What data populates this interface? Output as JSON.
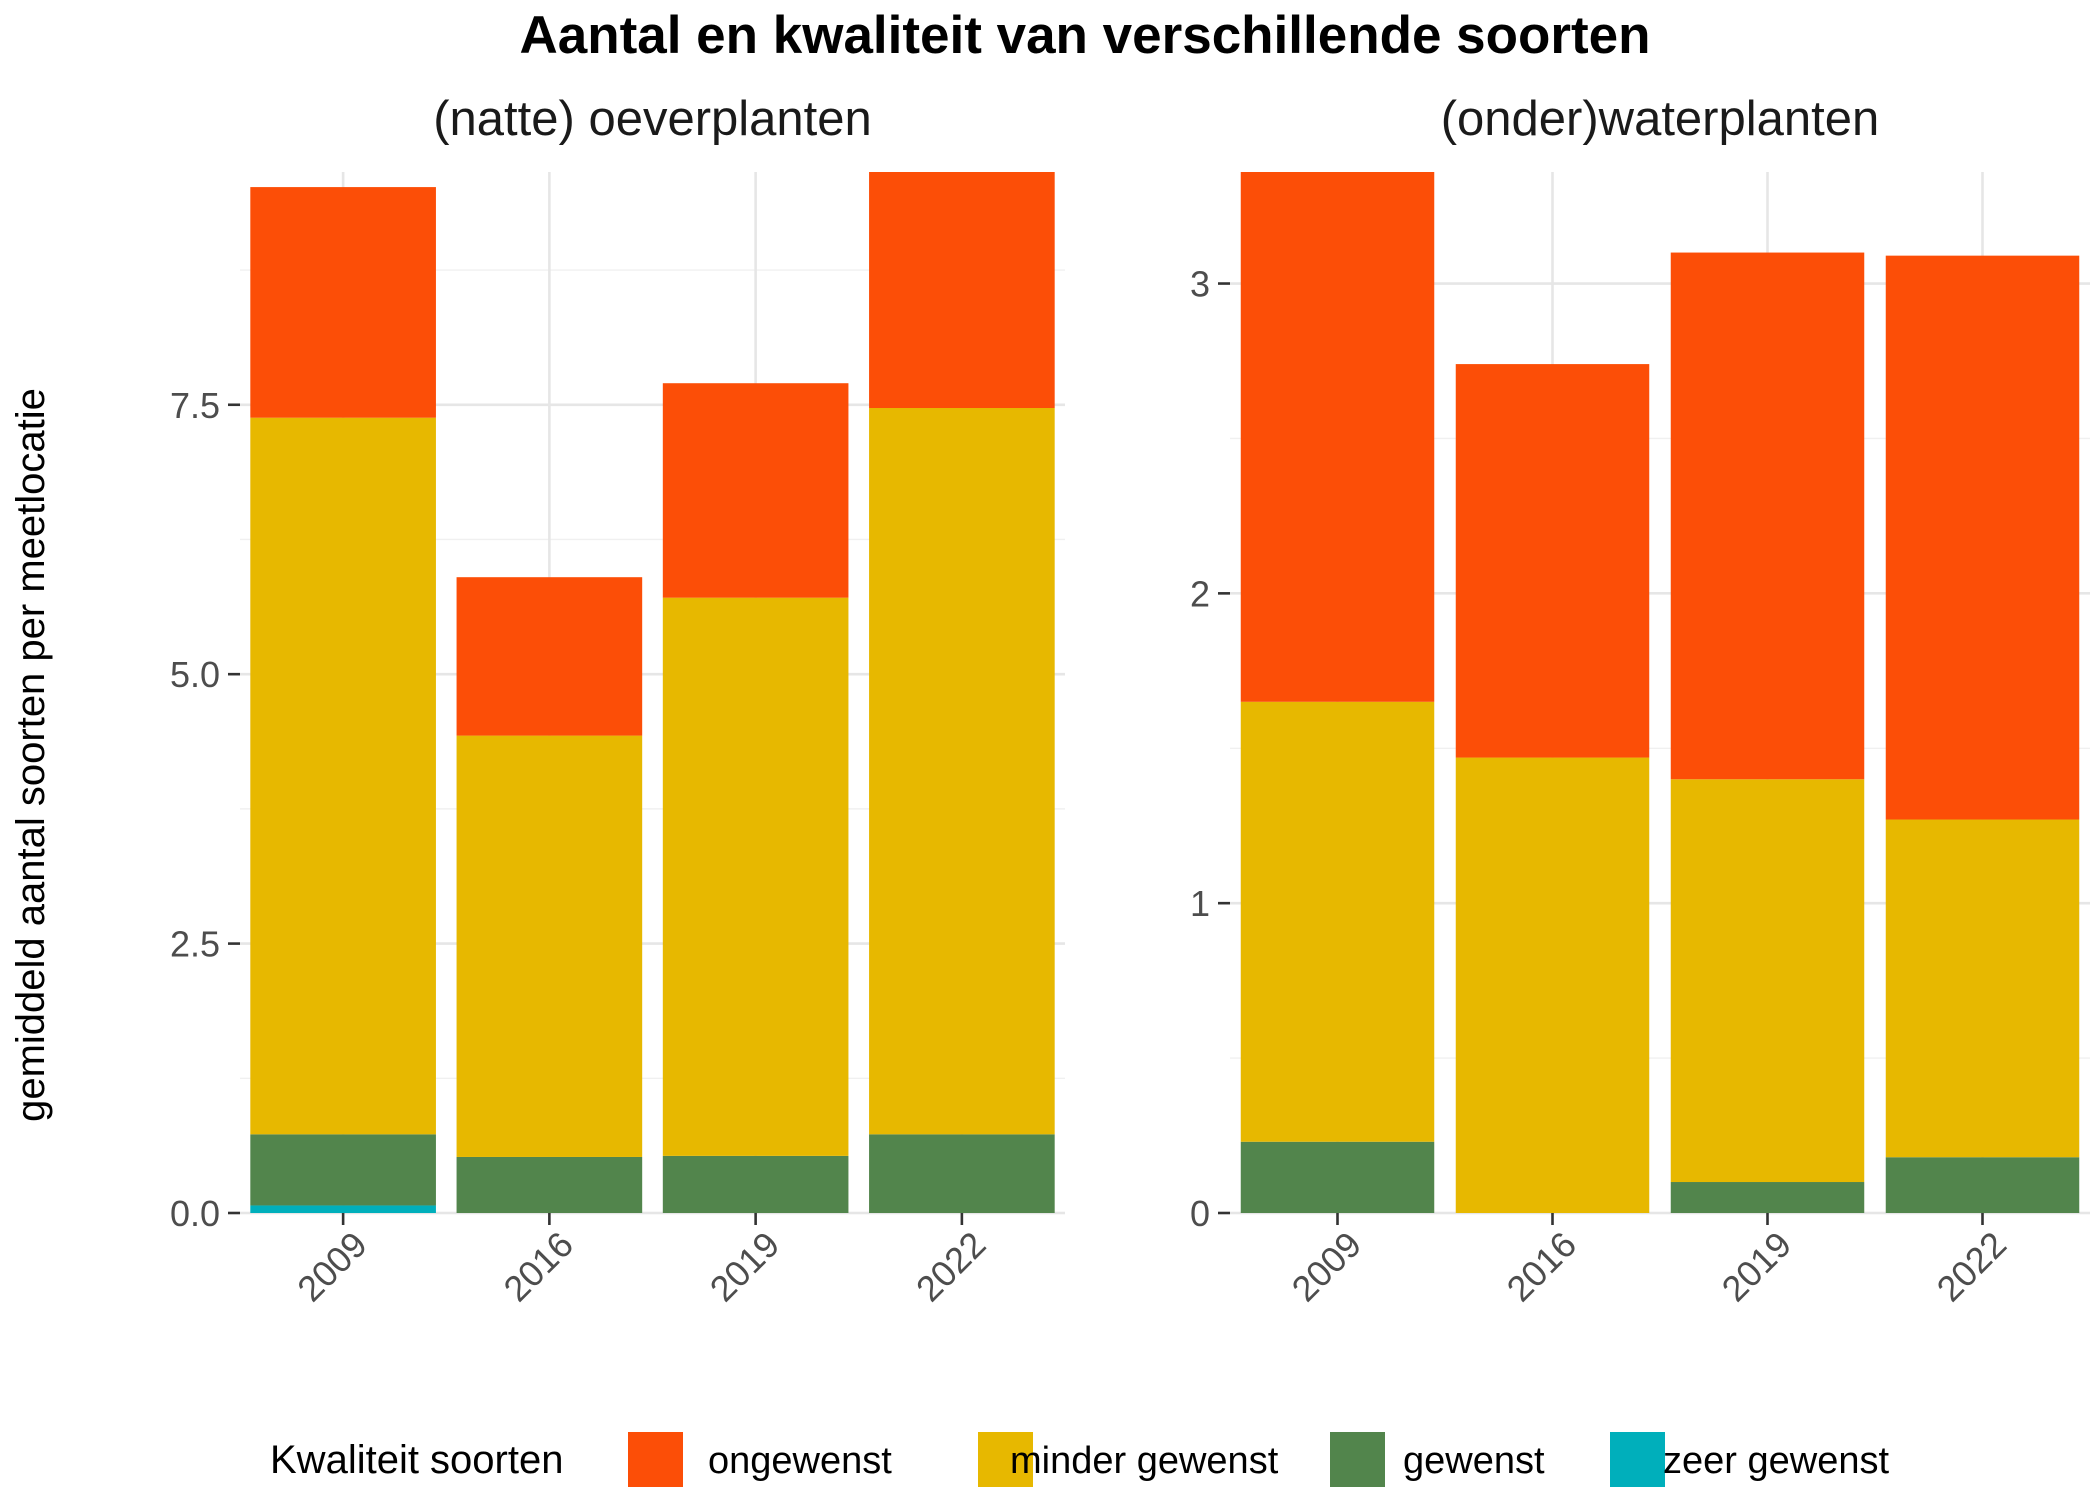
{
  "title": "Aantal en kwaliteit van verschillende soorten",
  "chart_data": {
    "type": "bar",
    "stacked": true,
    "title": "Aantal en kwaliteit van verschillende soorten",
    "ylabel": "gemiddeld aantal soorten per meetlocatie",
    "categories": [
      "2009",
      "2016",
      "2019",
      "2022"
    ],
    "grid": true,
    "legend": {
      "title": "Kwaliteit soorten",
      "position": "bottom",
      "entries": [
        {
          "name": "ongewenst",
          "color": "#FC4E07"
        },
        {
          "name": "minder gewenst",
          "color": "#E7B800"
        },
        {
          "name": "gewenst",
          "color": "#52854C"
        },
        {
          "name": "zeer gewenst",
          "color": "#00AFBB"
        }
      ]
    },
    "facets": [
      {
        "title": "(natte) oeverplanten",
        "ylim": [
          0,
          9.66
        ],
        "yticks": [
          0,
          2.5,
          5,
          7.5
        ],
        "ytick_labels": [
          "0.0",
          "2.5",
          "5.0",
          "7.5"
        ],
        "series": [
          {
            "name": "zeer gewenst",
            "color": "#00AFBB",
            "values": [
              0.07,
              0,
              0,
              0
            ]
          },
          {
            "name": "gewenst",
            "color": "#52854C",
            "values": [
              0.66,
              0.52,
              0.53,
              0.73
            ]
          },
          {
            "name": "minder gewenst",
            "color": "#E7B800",
            "values": [
              6.65,
              3.91,
              5.18,
              6.74
            ]
          },
          {
            "name": "ongewenst",
            "color": "#FC4E07",
            "values": [
              2.14,
              1.47,
              1.99,
              2.19
            ]
          }
        ]
      },
      {
        "title": "(onder)waterplanten",
        "ylim": [
          0,
          3.36
        ],
        "yticks": [
          0,
          1,
          2,
          3
        ],
        "ytick_labels": [
          "0",
          "1",
          "2",
          "3"
        ],
        "series": [
          {
            "name": "zeer gewenst",
            "color": "#00AFBB",
            "values": [
              0,
              0,
              0,
              0
            ]
          },
          {
            "name": "gewenst",
            "color": "#52854C",
            "values": [
              0.23,
              0,
              0.1,
              0.18
            ]
          },
          {
            "name": "minder gewenst",
            "color": "#E7B800",
            "values": [
              1.42,
              1.47,
              1.3,
              1.09
            ]
          },
          {
            "name": "ongewenst",
            "color": "#FC4E07",
            "values": [
              1.71,
              1.27,
              1.7,
              1.82
            ]
          }
        ]
      }
    ]
  }
}
